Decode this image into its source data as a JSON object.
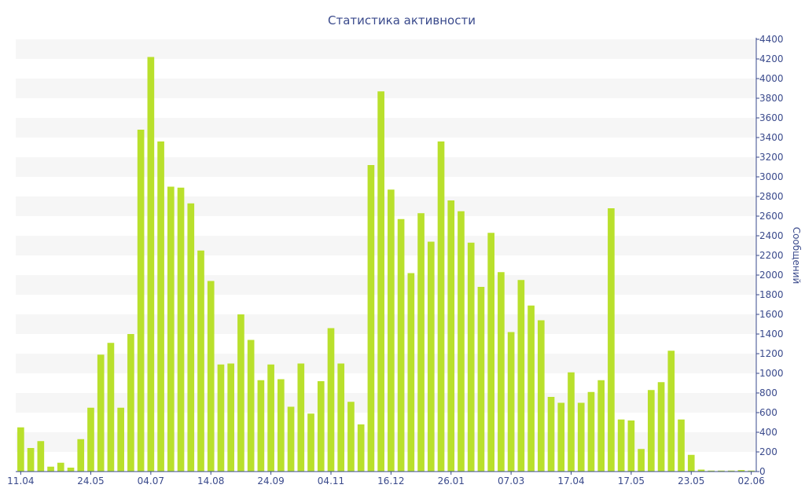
{
  "chart_data": {
    "type": "bar",
    "title": "Статистика активности",
    "ylabel": "Сообщений",
    "ylim": [
      0,
      4400
    ],
    "y_ticks": [
      0,
      200,
      400,
      600,
      800,
      1000,
      1200,
      1400,
      1600,
      1800,
      2000,
      2200,
      2400,
      2600,
      2800,
      3000,
      3200,
      3400,
      3600,
      3800,
      4000,
      4200,
      4400
    ],
    "y_axis_position": "right",
    "grid": "horizontal-bands",
    "x_tick_labels": [
      "11.04",
      "24.05",
      "04.07",
      "14.08",
      "24.09",
      "04.11",
      "16.12",
      "26.01",
      "07.03",
      "17.04",
      "17.05",
      "23.05",
      "02.06"
    ],
    "x_tick_bar_index": [
      0,
      7,
      13,
      19,
      25,
      31,
      37,
      43,
      49,
      55,
      61,
      67,
      73
    ],
    "values": [
      450,
      240,
      310,
      50,
      90,
      40,
      330,
      650,
      1190,
      1310,
      650,
      1400,
      3480,
      4220,
      3360,
      2900,
      2890,
      2730,
      2250,
      1940,
      1090,
      1100,
      1600,
      1340,
      930,
      1090,
      940,
      660,
      1100,
      590,
      920,
      1460,
      1100,
      710,
      480,
      3120,
      3870,
      2870,
      2570,
      2020,
      2630,
      2340,
      3360,
      2760,
      2650,
      2330,
      1880,
      2430,
      2030,
      1420,
      1950,
      1690,
      1540,
      760,
      700,
      1010,
      700,
      810,
      930,
      2680,
      530,
      520,
      230,
      830,
      910,
      1230,
      530,
      170,
      20,
      10,
      10,
      10,
      15,
      10
    ],
    "bar_color": "#b9e02c",
    "axis_color": "#3a4a8c",
    "band_color": "#f6f6f6"
  }
}
